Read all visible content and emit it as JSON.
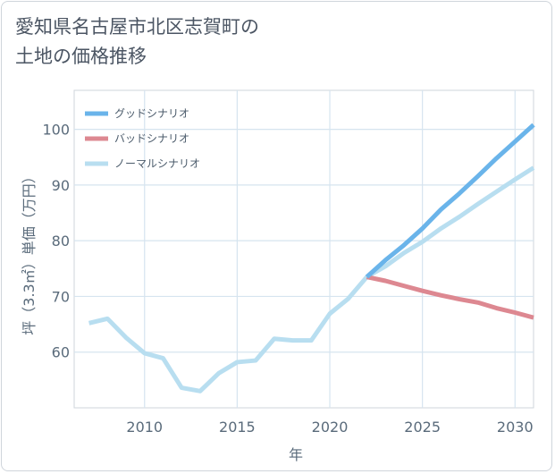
{
  "title_lines": [
    "愛知県名古屋市北区志賀町の",
    "土地の価格推移"
  ],
  "chart_data": {
    "type": "line",
    "xlabel": "年",
    "ylabel": "坪（3.3㎡）単価（万円）",
    "xlim": [
      2006.2,
      2031
    ],
    "ylim": [
      50,
      107
    ],
    "x_ticks": [
      2010,
      2015,
      2020,
      2025,
      2030
    ],
    "y_ticks": [
      60,
      70,
      80,
      90,
      100
    ],
    "grid": true,
    "legend_position": "top-left",
    "series": [
      {
        "name": "グッドシナリオ",
        "color": "#6ab4ea",
        "points": [
          [
            2022,
            73.5
          ],
          [
            2023,
            76.5
          ],
          [
            2024,
            79.2
          ],
          [
            2025,
            82.2
          ],
          [
            2026,
            85.6
          ],
          [
            2027,
            88.5
          ],
          [
            2028,
            91.6
          ],
          [
            2029,
            94.8
          ],
          [
            2030,
            97.8
          ],
          [
            2031,
            100.8
          ]
        ]
      },
      {
        "name": "バッドシナリオ",
        "color": "#dd8891",
        "points": [
          [
            2022,
            73.5
          ],
          [
            2023,
            72.8
          ],
          [
            2024,
            71.9
          ],
          [
            2025,
            71.0
          ],
          [
            2026,
            70.2
          ],
          [
            2027,
            69.5
          ],
          [
            2028,
            68.9
          ],
          [
            2029,
            67.9
          ],
          [
            2030,
            67.1
          ],
          [
            2031,
            66.2
          ]
        ]
      },
      {
        "name": "ノーマルシナリオ",
        "color": "#b8def0",
        "points": [
          [
            2007,
            65.2
          ],
          [
            2008,
            66.0
          ],
          [
            2009,
            62.6
          ],
          [
            2010,
            59.8
          ],
          [
            2011,
            58.9
          ],
          [
            2012,
            53.6
          ],
          [
            2013,
            53.0
          ],
          [
            2014,
            56.2
          ],
          [
            2015,
            58.2
          ],
          [
            2016,
            58.5
          ],
          [
            2017,
            62.4
          ],
          [
            2018,
            62.1
          ],
          [
            2019,
            62.1
          ],
          [
            2020,
            66.9
          ],
          [
            2021,
            69.6
          ],
          [
            2022,
            73.5
          ],
          [
            2023,
            75.4
          ],
          [
            2024,
            77.8
          ],
          [
            2025,
            79.8
          ],
          [
            2026,
            82.2
          ],
          [
            2027,
            84.3
          ],
          [
            2028,
            86.6
          ],
          [
            2029,
            88.8
          ],
          [
            2030,
            91.0
          ],
          [
            2031,
            93.1
          ]
        ]
      }
    ]
  }
}
